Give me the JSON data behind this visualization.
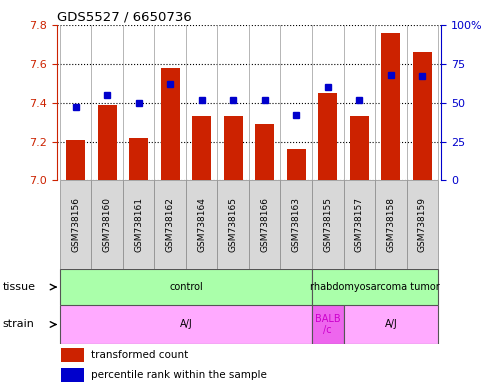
{
  "title": "GDS5527 / 6650736",
  "samples": [
    "GSM738156",
    "GSM738160",
    "GSM738161",
    "GSM738162",
    "GSM738164",
    "GSM738165",
    "GSM738166",
    "GSM738163",
    "GSM738155",
    "GSM738157",
    "GSM738158",
    "GSM738159"
  ],
  "transformed_count": [
    7.21,
    7.39,
    7.22,
    7.58,
    7.33,
    7.33,
    7.29,
    7.16,
    7.45,
    7.33,
    7.76,
    7.66
  ],
  "percentile_rank": [
    47,
    55,
    50,
    62,
    52,
    52,
    52,
    42,
    60,
    52,
    68,
    67
  ],
  "ylim_left": [
    7.0,
    7.8
  ],
  "ylim_right": [
    0,
    100
  ],
  "yticks_left": [
    7.0,
    7.2,
    7.4,
    7.6,
    7.8
  ],
  "yticks_right": [
    0,
    25,
    50,
    75,
    100
  ],
  "bar_color": "#cc2200",
  "dot_color": "#0000cc",
  "axis_label_color_left": "#cc2200",
  "axis_label_color_right": "#0000cc",
  "tissue_configs": [
    {
      "label": "control",
      "start": 0,
      "end": 8,
      "color": "#aaffaa"
    },
    {
      "label": "rhabdomyosarcoma tumor",
      "start": 8,
      "end": 12,
      "color": "#aaffaa"
    }
  ],
  "strain_configs": [
    {
      "label": "A/J",
      "start": 0,
      "end": 8,
      "color": "#ffaaff",
      "text_color": "black"
    },
    {
      "label": "BALB\n/c",
      "start": 8,
      "end": 9,
      "color": "#ee66ee",
      "text_color": "#cc00cc"
    },
    {
      "label": "A/J",
      "start": 9,
      "end": 12,
      "color": "#ffaaff",
      "text_color": "black"
    }
  ],
  "legend_items": [
    {
      "color": "#cc2200",
      "label": "transformed count",
      "marker": "s"
    },
    {
      "color": "#0000cc",
      "label": "percentile rank within the sample",
      "marker": "s"
    }
  ],
  "tissue_row_label": "tissue",
  "strain_row_label": "strain"
}
